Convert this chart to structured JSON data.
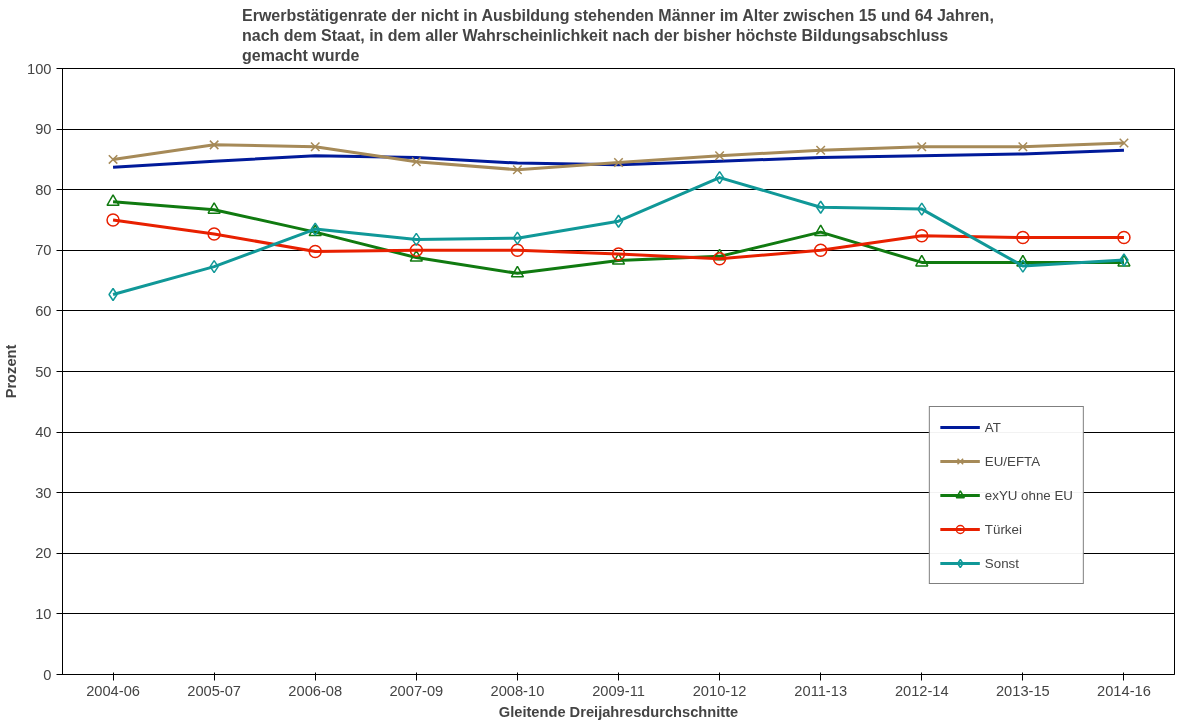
{
  "chart_data": {
    "type": "line",
    "title": "Erwerbstätigenrate der nicht in Ausbildung stehenden Männer im Alter zwischen 15 und 64 Jahren,\nnach dem Staat, in dem aller Wahrscheinlichkeit nach der bisher höchste Bildungsabschluss\ngemacht wurde",
    "xlabel": "Gleitende Dreijahresdurchschnitte",
    "ylabel": "Prozent",
    "categories": [
      "2004-06",
      "2005-07",
      "2006-08",
      "2007-09",
      "2008-10",
      "2009-11",
      "2010-12",
      "2011-13",
      "2012-14",
      "2013-15",
      "2014-16"
    ],
    "series": [
      {
        "name": "AT",
        "color": "#001a9a",
        "marker": "none",
        "values": [
          83.7,
          84.7,
          85.6,
          85.3,
          84.4,
          84.1,
          84.7,
          85.3,
          85.6,
          85.9,
          86.5
        ]
      },
      {
        "name": "EU/EFTA",
        "color": "#a68a58",
        "marker": "cross",
        "values": [
          85.0,
          87.4,
          87.1,
          84.6,
          83.3,
          84.5,
          85.6,
          86.5,
          87.1,
          87.1,
          87.7
        ]
      },
      {
        "name": "exYU ohne EU",
        "color": "#107a10",
        "marker": "triangle",
        "values": [
          78.0,
          76.7,
          73.0,
          68.8,
          66.2,
          68.3,
          69.0,
          73.0,
          68.0,
          68.0,
          68.0
        ]
      },
      {
        "name": "Türkei",
        "color": "#e82000",
        "marker": "circle",
        "values": [
          75.0,
          72.7,
          69.8,
          70.0,
          70.0,
          69.4,
          68.6,
          70.0,
          72.4,
          72.1,
          72.1
        ]
      },
      {
        "name": "Sonst",
        "color": "#109898",
        "marker": "diamond",
        "values": [
          62.7,
          67.3,
          73.5,
          71.8,
          72.0,
          74.8,
          82.0,
          77.1,
          76.8,
          67.4,
          68.4
        ]
      }
    ],
    "ylim": [
      0,
      100
    ],
    "yticks": [
      0,
      10,
      20,
      30,
      40,
      50,
      60,
      70,
      80,
      90,
      100
    ],
    "grid": "y",
    "legend": "bottom right"
  }
}
